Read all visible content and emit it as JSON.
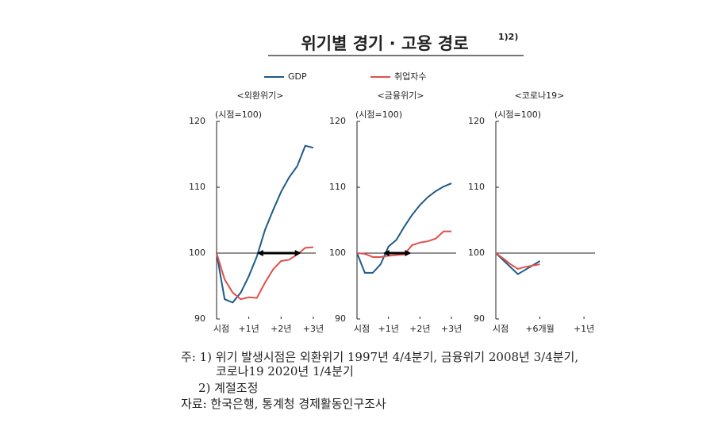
{
  "title": "위기별 경기 · 고용 경로",
  "title_note": "1)2)",
  "notes": [
    "주: 1) 위기 발생시점은 외환위기 1997년 4/4분기, 금융위기 2008년 3/4분기,",
    "코로나19 2020년 1/4분기",
    "2) 계절조정",
    "자료: 한국은행, 통계청 경제활동인구조사"
  ],
  "chart_data": [
    {
      "type": "line",
      "subtitle": "<외환위기>",
      "ylabel": "(시점=100)",
      "xlim": [
        0,
        12.3
      ],
      "ylim": [
        90,
        120
      ],
      "yticks": [
        90,
        100,
        110,
        120
      ],
      "hline": 100,
      "arrow": [
        5,
        10.5
      ],
      "xticks": [
        {
          "value": 0,
          "label": "시점"
        },
        {
          "value": 4,
          "label": "+1년"
        },
        {
          "value": 8,
          "label": "+2년"
        },
        {
          "value": 12,
          "label": "+3년"
        }
      ],
      "series": [
        {
          "name": "GDP",
          "color": "#1f5a87",
          "x": [
            0,
            1,
            2,
            3,
            4,
            5,
            6,
            7,
            8,
            9,
            10,
            11,
            12
          ],
          "values": [
            100,
            93,
            92.5,
            94,
            96.5,
            99.5,
            103.5,
            106.5,
            109.3,
            111.5,
            113.2,
            116.3,
            116
          ]
        },
        {
          "name": "취업자수",
          "color": "#e0504a",
          "x": [
            0,
            1,
            2,
            3,
            4,
            5,
            6,
            7,
            8,
            9,
            10,
            11,
            12
          ],
          "values": [
            100,
            96,
            94,
            93,
            93.3,
            93.2,
            95.5,
            97.5,
            98.8,
            99,
            99.8,
            100.8,
            100.9
          ]
        }
      ]
    },
    {
      "type": "line",
      "subtitle": "<금융위기>",
      "ylabel": "(시점=100)",
      "xlim": [
        0,
        12.6
      ],
      "ylim": [
        90,
        120
      ],
      "yticks": [
        90,
        100,
        110,
        120
      ],
      "hline": 100,
      "arrow": [
        3.3,
        6.9
      ],
      "xticks": [
        {
          "value": 0,
          "label": "시점"
        },
        {
          "value": 4,
          "label": "+1년"
        },
        {
          "value": 8,
          "label": "+2년"
        },
        {
          "value": 12,
          "label": "+3년"
        }
      ],
      "series": [
        {
          "name": "GDP",
          "color": "#1f5a87",
          "x": [
            0,
            1,
            2,
            3,
            4,
            5,
            6,
            7,
            8,
            9,
            10,
            11,
            12
          ],
          "values": [
            100,
            97,
            97,
            98.3,
            101,
            102,
            104,
            105.8,
            107.3,
            108.5,
            109.4,
            110.1,
            110.6
          ]
        },
        {
          "name": "취업자수",
          "color": "#e0504a",
          "x": [
            0,
            1,
            2,
            3,
            4,
            5,
            6,
            7,
            8,
            9,
            10,
            11,
            12
          ],
          "values": [
            100,
            99.9,
            99.4,
            99.4,
            99.6,
            99.7,
            99.8,
            101.2,
            101.6,
            101.8,
            102.2,
            103.3,
            103.3
          ]
        }
      ]
    },
    {
      "type": "line",
      "subtitle": "<코로나19>",
      "ylabel": "(시점=100)",
      "xlim": [
        0,
        4.5
      ],
      "ylim": [
        90,
        120
      ],
      "yticks": [
        90,
        100,
        110,
        120
      ],
      "hline": 100,
      "xticks": [
        {
          "value": 0,
          "label": "시점"
        },
        {
          "value": 2,
          "label": "+6개월"
        },
        {
          "value": 4,
          "label": "+1년"
        }
      ],
      "series": [
        {
          "name": "GDP",
          "color": "#1f5a87",
          "x": [
            0,
            1,
            2
          ],
          "values": [
            100,
            96.8,
            98.8
          ]
        },
        {
          "name": "취업자수",
          "color": "#e0504a",
          "x": [
            0,
            0.33,
            0.67,
            1,
            1.33,
            1.67,
            2
          ],
          "values": [
            100,
            99.2,
            98.3,
            97.6,
            97.9,
            98.1,
            98.3
          ]
        }
      ]
    }
  ]
}
